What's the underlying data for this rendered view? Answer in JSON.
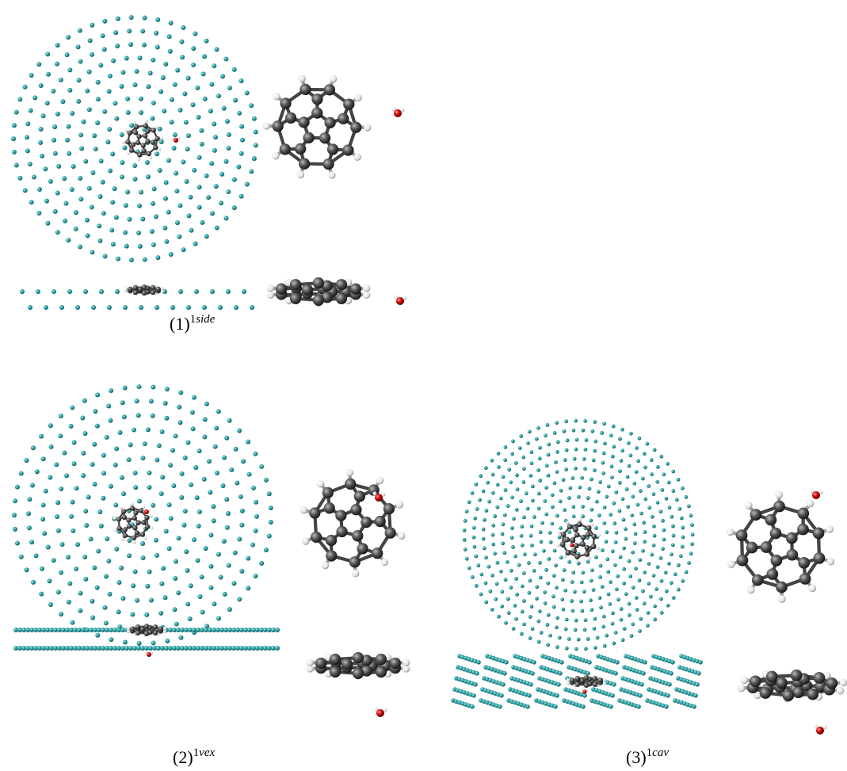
{
  "panels": [
    {
      "number": "(1)",
      "state": "1",
      "label": "side"
    },
    {
      "number": "(2)",
      "state": "1",
      "label": "vex"
    },
    {
      "number": "(3)",
      "state": "1",
      "label": "cav"
    }
  ]
}
